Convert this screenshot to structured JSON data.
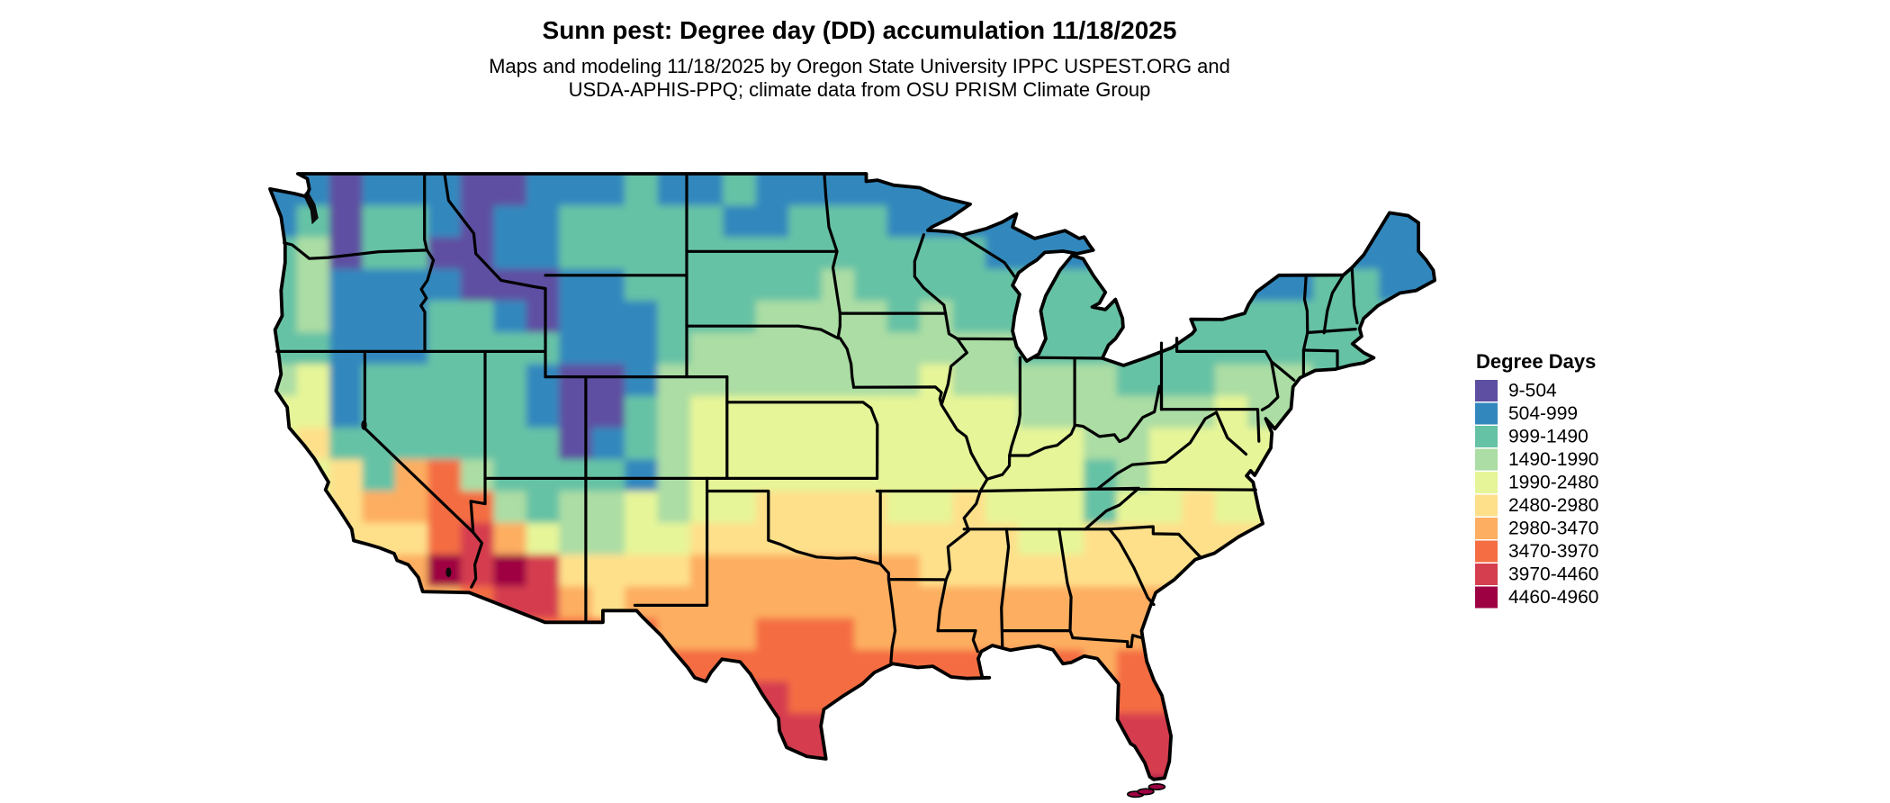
{
  "title": "Sunn pest: Degree day (DD) accumulation 11/18/2025",
  "subtitle_line1": "Maps and modeling 11/18/2025 by Oregon State University IPPC USPEST.ORG and",
  "subtitle_line2": "USDA-APHIS-PPQ; climate data from OSU PRISM Climate Group",
  "legend": {
    "title": "Degree Days",
    "bins": [
      {
        "label": "9-504",
        "color": "#5e4fa2"
      },
      {
        "label": "504-999",
        "color": "#3288bd"
      },
      {
        "label": "999-1490",
        "color": "#66c2a5"
      },
      {
        "label": "1490-1990",
        "color": "#abdda4"
      },
      {
        "label": "1990-2480",
        "color": "#e6f598"
      },
      {
        "label": "2480-2980",
        "color": "#fee08b"
      },
      {
        "label": "2980-3470",
        "color": "#fdae61"
      },
      {
        "label": "3470-3970",
        "color": "#f46d43"
      },
      {
        "label": "3970-4460",
        "color": "#d53e4f"
      },
      {
        "label": "4460-4960",
        "color": "#9e0142"
      }
    ]
  },
  "map": {
    "region": "Contiguous United States",
    "grid": {
      "lon0": -125.0,
      "lat0": 49.0,
      "dlon": 1.625,
      "dlat": 1.25,
      "cols": 36,
      "rows_count": 20,
      "rows": [
        "110111001112112111111111111111111111",
        "120221011222221122211111111111111111",
        "230220011222222222222211111111111111",
        "231111000112222223222222221112112211",
        "231112210111222333323222222222222222",
        "221112222111233333333332222222222222",
        "341222221001333333334333332223332222",
        "441222221002344444444443333334333333",
        "452222222012344444444444433444444444",
        "445267322221344444444444423444444444",
        "445667732334344555544544424454444444",
        "555557864334455555555554455555555555",
        "555569898555566666665555555555555555",
        "666666788656666666666666666666666666",
        "777777777777666777666666666666666666",
        "777777777777777777777777767777777777",
        "777777777777788877777777777777777777",
        "888888888888888888888888888888888888",
        "888888888888889988888888888888888888",
        "999999999999999999999999999999999999"
      ]
    }
  }
}
